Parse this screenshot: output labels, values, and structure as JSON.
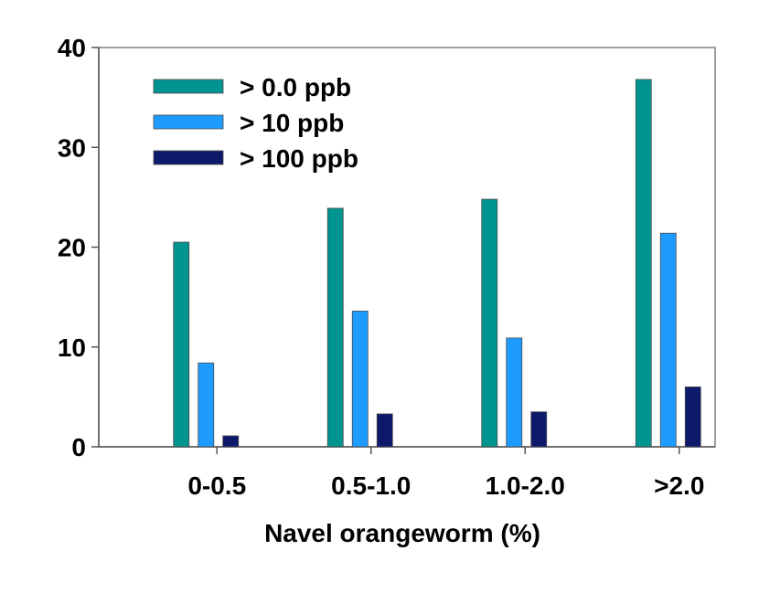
{
  "chart_data": {
    "type": "bar",
    "title": "",
    "xlabel": "Navel orangeworm (%)",
    "ylabel": "",
    "ylim": [
      0,
      40
    ],
    "yticks": [
      "0",
      "10",
      "20",
      "30",
      "40"
    ],
    "categories": [
      "0-0.5",
      "0.5-1.0",
      "1.0-2.0",
      ">2.0"
    ],
    "series": [
      {
        "name": "> 0.0 ppb",
        "color": "#009490",
        "values": [
          20.5,
          23.9,
          24.8,
          36.8
        ]
      },
      {
        "name": "> 10 ppb",
        "color": "#1E9BFF",
        "values": [
          8.4,
          13.6,
          10.9,
          21.4
        ]
      },
      {
        "name": "> 100 ppb",
        "color": "#0D1A6B",
        "values": [
          1.1,
          3.3,
          3.5,
          6.0
        ]
      }
    ],
    "legend": "top-left",
    "grid": false
  }
}
